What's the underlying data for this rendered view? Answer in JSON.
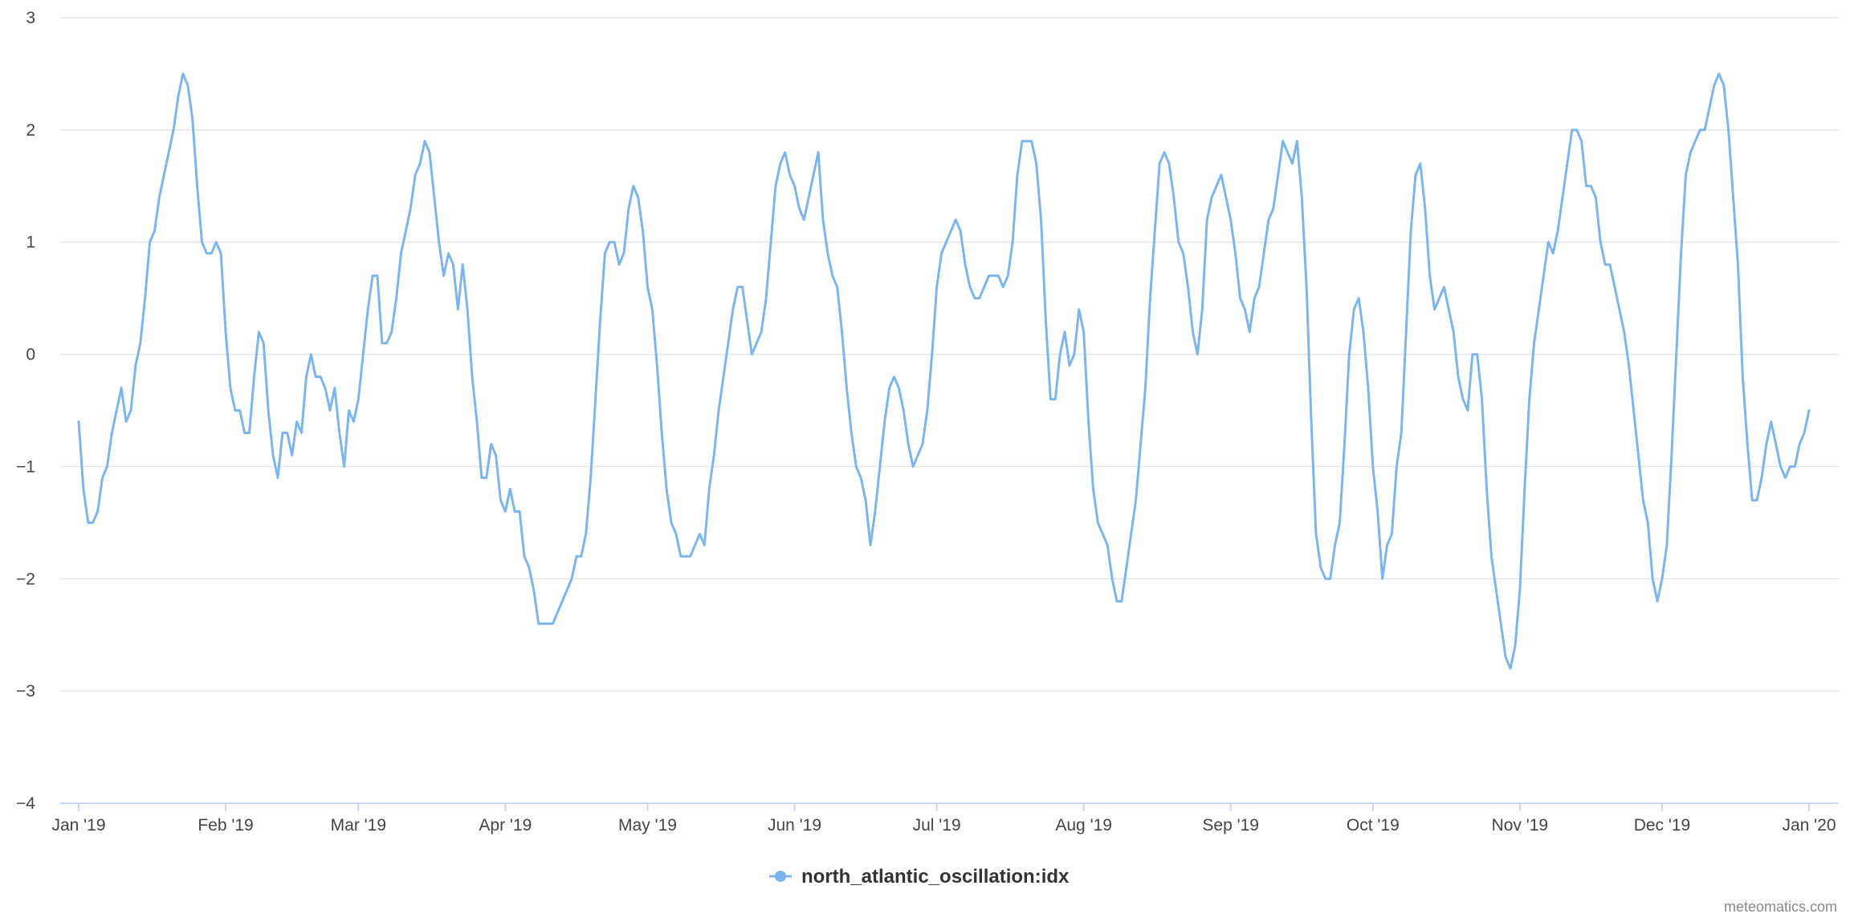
{
  "chart_data": {
    "type": "line",
    "title": "",
    "xlabel": "",
    "ylabel": "",
    "x_start": "2019-01-01",
    "x_end": "2020-01-01",
    "x_interval": "daily",
    "ylim": [
      -4,
      3
    ],
    "yticks": [
      3,
      2,
      1,
      0,
      -1,
      -2,
      -3,
      -4
    ],
    "ytick_labels": [
      "3",
      "2",
      "1",
      "0",
      "−1",
      "−2",
      "−3",
      "−4"
    ],
    "xtick_dates": [
      "2019-01-01",
      "2019-02-01",
      "2019-03-01",
      "2019-04-01",
      "2019-05-01",
      "2019-06-01",
      "2019-07-01",
      "2019-08-01",
      "2019-09-01",
      "2019-10-01",
      "2019-11-01",
      "2019-12-01",
      "2020-01-01"
    ],
    "xtick_labels": [
      "Jan '19",
      "Feb '19",
      "Mar '19",
      "Apr '19",
      "May '19",
      "Jun '19",
      "Jul '19",
      "Aug '19",
      "Sep '19",
      "Oct '19",
      "Nov '19",
      "Dec '19",
      "Jan '20"
    ],
    "grid": true,
    "legend_position": "bottom-center",
    "series": [
      {
        "name": "north_atlantic_oscillation:idx",
        "color": "#7cb5ec",
        "values": [
          -0.6,
          -1.2,
          -1.5,
          -1.5,
          -1.4,
          -1.1,
          -1.0,
          -0.7,
          -0.5,
          -0.3,
          -0.6,
          -0.5,
          -0.1,
          0.1,
          0.5,
          1.0,
          1.1,
          1.4,
          1.6,
          1.8,
          2.0,
          2.3,
          2.5,
          2.4,
          2.1,
          1.5,
          1.0,
          0.9,
          0.9,
          1.0,
          0.9,
          0.2,
          -0.3,
          -0.5,
          -0.5,
          -0.7,
          -0.7,
          -0.2,
          0.2,
          0.1,
          -0.5,
          -0.9,
          -1.1,
          -0.7,
          -0.7,
          -0.9,
          -0.6,
          -0.7,
          -0.2,
          0.0,
          -0.2,
          -0.2,
          -0.3,
          -0.5,
          -0.3,
          -0.7,
          -1.0,
          -0.5,
          -0.6,
          -0.4,
          0.0,
          0.4,
          0.7,
          0.7,
          0.1,
          0.1,
          0.2,
          0.5,
          0.9,
          1.1,
          1.3,
          1.6,
          1.7,
          1.9,
          1.8,
          1.4,
          1.0,
          0.7,
          0.9,
          0.8,
          0.4,
          0.8,
          0.4,
          -0.2,
          -0.6,
          -1.1,
          -1.1,
          -0.8,
          -0.9,
          -1.3,
          -1.4,
          -1.2,
          -1.4,
          -1.4,
          -1.8,
          -1.9,
          -2.1,
          -2.4,
          -2.4,
          -2.4,
          -2.4,
          -2.3,
          -2.2,
          -2.1,
          -2.0,
          -1.8,
          -1.8,
          -1.6,
          -1.1,
          -0.4,
          0.3,
          0.9,
          1.0,
          1.0,
          0.8,
          0.9,
          1.3,
          1.5,
          1.4,
          1.1,
          0.6,
          0.4,
          -0.1,
          -0.7,
          -1.2,
          -1.5,
          -1.6,
          -1.8,
          -1.8,
          -1.8,
          -1.7,
          -1.6,
          -1.7,
          -1.2,
          -0.9,
          -0.5,
          -0.2,
          0.1,
          0.4,
          0.6,
          0.6,
          0.3,
          0.0,
          0.1,
          0.2,
          0.5,
          1.0,
          1.5,
          1.7,
          1.8,
          1.6,
          1.5,
          1.3,
          1.2,
          1.4,
          1.6,
          1.8,
          1.2,
          0.9,
          0.7,
          0.6,
          0.2,
          -0.3,
          -0.7,
          -1.0,
          -1.1,
          -1.3,
          -1.7,
          -1.4,
          -1.0,
          -0.6,
          -0.3,
          -0.2,
          -0.3,
          -0.5,
          -0.8,
          -1.0,
          -0.9,
          -0.8,
          -0.5,
          0.0,
          0.6,
          0.9,
          1.0,
          1.1,
          1.2,
          1.1,
          0.8,
          0.6,
          0.5,
          0.5,
          0.6,
          0.7,
          0.7,
          0.7,
          0.6,
          0.7,
          1.0,
          1.6,
          1.9,
          1.9,
          1.9,
          1.7,
          1.2,
          0.3,
          -0.4,
          -0.4,
          0.0,
          0.2,
          -0.1,
          0.0,
          0.4,
          0.2,
          -0.6,
          -1.2,
          -1.5,
          -1.6,
          -1.7,
          -2.0,
          -2.2,
          -2.2,
          -1.9,
          -1.6,
          -1.3,
          -0.8,
          -0.3,
          0.5,
          1.1,
          1.7,
          1.8,
          1.7,
          1.4,
          1.0,
          0.9,
          0.6,
          0.2,
          0.0,
          0.4,
          1.2,
          1.4,
          1.5,
          1.6,
          1.4,
          1.2,
          0.9,
          0.5,
          0.4,
          0.2,
          0.5,
          0.6,
          0.9,
          1.2,
          1.3,
          1.6,
          1.9,
          1.8,
          1.7,
          1.9,
          1.4,
          0.6,
          -0.6,
          -1.6,
          -1.9,
          -2.0,
          -2.0,
          -1.7,
          -1.5,
          -0.8,
          0.0,
          0.4,
          0.5,
          0.2,
          -0.3,
          -1.0,
          -1.4,
          -2.0,
          -1.7,
          -1.6,
          -1.0,
          -0.7,
          0.2,
          1.1,
          1.6,
          1.7,
          1.3,
          0.7,
          0.4,
          0.5,
          0.6,
          0.4,
          0.2,
          -0.2,
          -0.4,
          -0.5,
          0.0,
          0.0,
          -0.4,
          -1.2,
          -1.8,
          -2.1,
          -2.4,
          -2.7,
          -2.8,
          -2.6,
          -2.1,
          -1.2,
          -0.4,
          0.1,
          0.4,
          0.7,
          1.0,
          0.9,
          1.1,
          1.4,
          1.7,
          2.0,
          2.0,
          1.9,
          1.5,
          1.5,
          1.4,
          1.0,
          0.8,
          0.8,
          0.6,
          0.4,
          0.2,
          -0.1,
          -0.5,
          -0.9,
          -1.3,
          -1.5,
          -2.0,
          -2.2,
          -2.0,
          -1.7,
          -0.9,
          0.0,
          0.9,
          1.6,
          1.8,
          1.9,
          2.0,
          2.0,
          2.2,
          2.4,
          2.5,
          2.4,
          2.0,
          1.4,
          0.8,
          -0.2,
          -0.8,
          -1.3,
          -1.3,
          -1.1,
          -0.8,
          -0.6,
          -0.8,
          -1.0,
          -1.1,
          -1.0,
          -1.0,
          -0.8,
          -0.7,
          -0.5
        ]
      }
    ]
  },
  "credit": "meteomatics.com"
}
